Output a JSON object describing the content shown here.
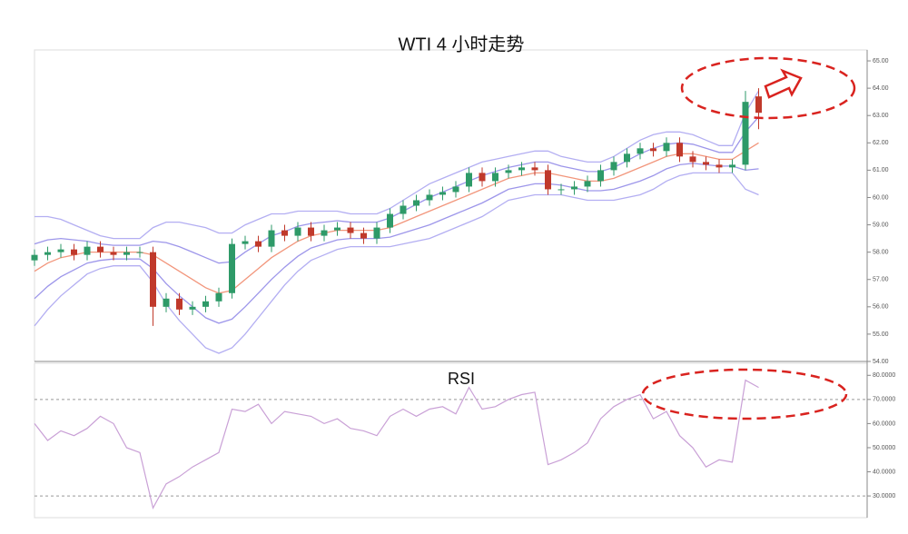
{
  "chart_data": [
    {
      "type": "candlestick",
      "title": "WTI  4 小时走势",
      "open": [
        57.7,
        57.9,
        58.0,
        58.1,
        57.9,
        58.2,
        58.0,
        57.9,
        58.0,
        58.0,
        56.0,
        56.3,
        55.9,
        56.0,
        56.2,
        56.5,
        58.3,
        58.4,
        58.2,
        58.8,
        58.6,
        58.9,
        58.6,
        58.8,
        58.9,
        58.7,
        58.5,
        58.9,
        59.4,
        59.7,
        59.9,
        60.1,
        60.2,
        60.4,
        60.9,
        60.6,
        60.9,
        61.0,
        61.1,
        61.0,
        60.3,
        60.3,
        60.4,
        60.6,
        61.0,
        61.3,
        61.6,
        61.8,
        61.7,
        62.0,
        61.5,
        61.3,
        61.2,
        61.1,
        61.2,
        63.7
      ],
      "high": [
        58.1,
        58.2,
        58.3,
        58.3,
        58.4,
        58.4,
        58.2,
        58.2,
        58.2,
        58.2,
        56.5,
        56.5,
        56.2,
        56.4,
        56.7,
        58.5,
        58.6,
        58.6,
        59.0,
        59.0,
        59.1,
        59.1,
        59.0,
        59.1,
        59.1,
        58.9,
        59.1,
        59.6,
        59.9,
        60.1,
        60.3,
        60.4,
        60.6,
        61.1,
        61.1,
        61.1,
        61.2,
        61.3,
        61.3,
        61.2,
        60.5,
        60.6,
        60.8,
        61.2,
        61.5,
        61.8,
        62.0,
        62.0,
        62.2,
        62.2,
        61.7,
        61.5,
        61.4,
        61.4,
        63.9,
        64.0
      ],
      "low": [
        57.5,
        57.7,
        57.8,
        57.7,
        57.7,
        57.8,
        57.7,
        57.7,
        57.8,
        55.3,
        55.8,
        55.7,
        55.7,
        55.8,
        56.0,
        56.3,
        58.1,
        58.0,
        58.0,
        58.4,
        58.4,
        58.4,
        58.4,
        58.6,
        58.5,
        58.3,
        58.3,
        58.7,
        59.2,
        59.5,
        59.7,
        59.9,
        60.0,
        60.2,
        60.4,
        60.4,
        60.7,
        60.8,
        60.8,
        60.1,
        60.1,
        60.1,
        60.2,
        60.4,
        60.8,
        61.1,
        61.4,
        61.5,
        61.5,
        61.3,
        61.1,
        61.0,
        60.9,
        60.9,
        61.0,
        62.5
      ],
      "close": [
        57.9,
        58.0,
        58.1,
        57.9,
        58.2,
        58.0,
        57.9,
        58.0,
        58.0,
        56.0,
        56.3,
        55.9,
        56.0,
        56.2,
        56.5,
        58.3,
        58.4,
        58.2,
        58.8,
        58.6,
        58.9,
        58.6,
        58.8,
        58.9,
        58.7,
        58.5,
        58.9,
        59.4,
        59.7,
        59.9,
        60.1,
        60.2,
        60.4,
        60.9,
        60.6,
        60.9,
        61.0,
        61.1,
        61.0,
        60.3,
        60.3,
        60.4,
        60.6,
        61.0,
        61.3,
        61.6,
        61.8,
        61.7,
        62.0,
        61.5,
        61.3,
        61.2,
        61.1,
        61.2,
        63.5,
        63.1
      ],
      "up_color": "#2e9a68",
      "down_color": "#c0392b",
      "overlays": [
        {
          "color": "#b3aef2",
          "values": [
            59.3,
            59.3,
            59.2,
            59.0,
            58.8,
            58.6,
            58.5,
            58.5,
            58.5,
            58.9,
            59.1,
            59.1,
            59.0,
            58.9,
            58.7,
            58.7,
            59.0,
            59.2,
            59.4,
            59.4,
            59.5,
            59.5,
            59.5,
            59.5,
            59.4,
            59.4,
            59.4,
            59.6,
            59.9,
            60.2,
            60.5,
            60.7,
            60.9,
            61.1,
            61.3,
            61.4,
            61.5,
            61.6,
            61.7,
            61.7,
            61.5,
            61.4,
            61.3,
            61.3,
            61.5,
            61.8,
            62.1,
            62.3,
            62.4,
            62.4,
            62.3,
            62.1,
            61.9,
            61.9,
            63.1,
            63.9
          ]
        },
        {
          "color": "#9d96ea",
          "values": [
            58.3,
            58.45,
            58.5,
            58.45,
            58.4,
            58.3,
            58.25,
            58.25,
            58.25,
            58.4,
            58.35,
            58.2,
            58.0,
            57.8,
            57.6,
            57.65,
            58.0,
            58.3,
            58.6,
            58.75,
            58.95,
            59.05,
            59.1,
            59.15,
            59.1,
            59.1,
            59.1,
            59.25,
            59.5,
            59.75,
            60.0,
            60.2,
            60.4,
            60.6,
            60.8,
            60.95,
            61.1,
            61.2,
            61.3,
            61.3,
            61.15,
            61.05,
            60.95,
            60.95,
            61.1,
            61.35,
            61.6,
            61.8,
            61.95,
            62.0,
            61.95,
            61.8,
            61.65,
            61.65,
            62.4,
            62.95
          ]
        },
        {
          "color": "#f2967c",
          "values": [
            57.3,
            57.6,
            57.8,
            57.9,
            58.0,
            58.0,
            58.0,
            58.0,
            58.0,
            57.9,
            57.6,
            57.3,
            57.0,
            56.7,
            56.5,
            56.6,
            57.0,
            57.4,
            57.8,
            58.1,
            58.4,
            58.6,
            58.7,
            58.8,
            58.8,
            58.8,
            58.8,
            58.9,
            59.1,
            59.3,
            59.5,
            59.7,
            59.9,
            60.1,
            60.3,
            60.5,
            60.7,
            60.8,
            60.9,
            60.9,
            60.8,
            60.7,
            60.6,
            60.6,
            60.7,
            60.9,
            61.1,
            61.3,
            61.5,
            61.6,
            61.6,
            61.5,
            61.4,
            61.4,
            61.7,
            62.0
          ]
        },
        {
          "color": "#9d96ea",
          "values": [
            56.3,
            56.75,
            57.1,
            57.35,
            57.6,
            57.7,
            57.75,
            57.75,
            57.75,
            57.4,
            56.85,
            56.4,
            56.0,
            55.6,
            55.4,
            55.55,
            56.0,
            56.5,
            57.0,
            57.45,
            57.85,
            58.15,
            58.3,
            58.45,
            58.5,
            58.5,
            58.5,
            58.55,
            58.7,
            58.85,
            59.0,
            59.2,
            59.4,
            59.6,
            59.8,
            60.05,
            60.3,
            60.4,
            60.5,
            60.5,
            60.45,
            60.35,
            60.25,
            60.25,
            60.3,
            60.45,
            60.6,
            60.8,
            61.05,
            61.2,
            61.25,
            61.2,
            61.15,
            61.15,
            61.0,
            61.05
          ]
        },
        {
          "color": "#b3aef2",
          "values": [
            55.3,
            55.9,
            56.4,
            56.8,
            57.2,
            57.4,
            57.5,
            57.5,
            57.5,
            56.9,
            56.1,
            55.5,
            55.0,
            54.5,
            54.3,
            54.5,
            55.0,
            55.6,
            56.2,
            56.8,
            57.3,
            57.7,
            57.9,
            58.1,
            58.2,
            58.2,
            58.2,
            58.2,
            58.3,
            58.4,
            58.5,
            58.7,
            58.9,
            59.1,
            59.3,
            59.6,
            59.9,
            60.0,
            60.1,
            60.1,
            60.1,
            60.0,
            59.9,
            59.9,
            59.9,
            60.0,
            60.1,
            60.3,
            60.6,
            60.8,
            60.9,
            60.9,
            60.9,
            60.9,
            60.3,
            60.1
          ]
        }
      ],
      "ylim": [
        54,
        65.4
      ],
      "yticks": [
        {
          "value": 54,
          "label": "54.00"
        },
        {
          "value": 55,
          "label": "55.00"
        },
        {
          "value": 56,
          "label": "56.00"
        },
        {
          "value": 57,
          "label": "57.00"
        },
        {
          "value": 58,
          "label": "58.00"
        },
        {
          "value": 59,
          "label": "59.00"
        },
        {
          "value": 60,
          "label": "60.00"
        },
        {
          "value": 61,
          "label": "61.00"
        },
        {
          "value": 62,
          "label": "62.00"
        },
        {
          "value": 63,
          "label": "63.00"
        },
        {
          "value": 64,
          "label": "64.00"
        },
        {
          "value": 65,
          "label": "65.00"
        }
      ]
    },
    {
      "type": "line",
      "title": "RSI",
      "color": "#c9a0d6",
      "values": [
        60,
        53,
        57,
        55,
        58,
        63,
        60,
        50,
        48,
        25,
        35,
        38,
        42,
        45,
        48,
        66,
        65,
        68,
        60,
        65,
        64,
        63,
        60,
        62,
        58,
        57,
        55,
        63,
        66,
        63,
        66,
        67,
        64,
        75,
        66,
        67,
        70,
        72,
        73,
        43,
        45,
        48,
        52,
        62,
        67,
        70,
        72,
        62,
        65,
        55,
        50,
        42,
        45,
        44,
        78,
        75
      ],
      "ref_lines": [
        30,
        70
      ],
      "ylim": [
        21,
        85
      ],
      "yticks": [
        {
          "value": 30,
          "label": "30.0000"
        },
        {
          "value": 40,
          "label": "40.0000"
        },
        {
          "value": 50,
          "label": "50.0000"
        },
        {
          "value": 60,
          "label": "60.0000"
        },
        {
          "value": 70,
          "label": "70.0000"
        },
        {
          "value": 80,
          "label": "80.0000"
        }
      ]
    }
  ]
}
